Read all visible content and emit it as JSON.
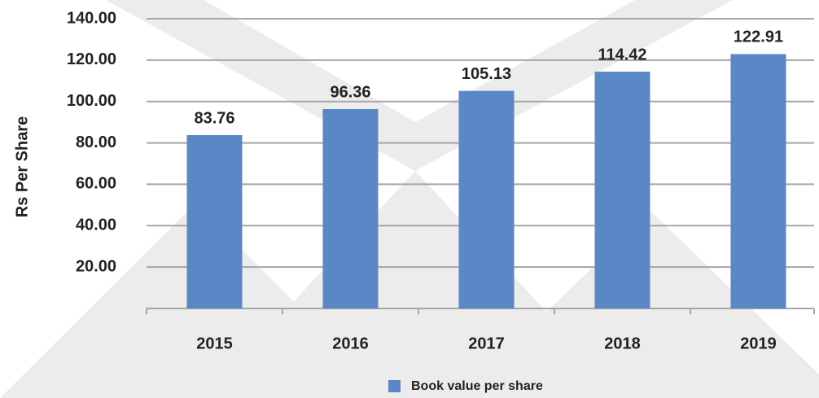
{
  "chart_data": {
    "type": "bar",
    "y_label": "Rs Per Share",
    "categories": [
      "2015",
      "2016",
      "2017",
      "2018",
      "2019"
    ],
    "series": [
      {
        "name": "Book value per share",
        "color": "#5a87c6",
        "values": [
          83.76,
          96.36,
          105.13,
          114.42,
          122.91
        ]
      }
    ],
    "ylim": [
      0,
      140
    ],
    "yticks": [
      {
        "value": 20,
        "label": "20.00"
      },
      {
        "value": 40,
        "label": "40.00"
      },
      {
        "value": 60,
        "label": "60.00"
      },
      {
        "value": 80,
        "label": "80.00"
      },
      {
        "value": 100,
        "label": "100.00"
      },
      {
        "value": 120,
        "label": "120.00"
      },
      {
        "value": 140,
        "label": "140.00"
      }
    ],
    "grid": true,
    "legend": "bottom"
  }
}
